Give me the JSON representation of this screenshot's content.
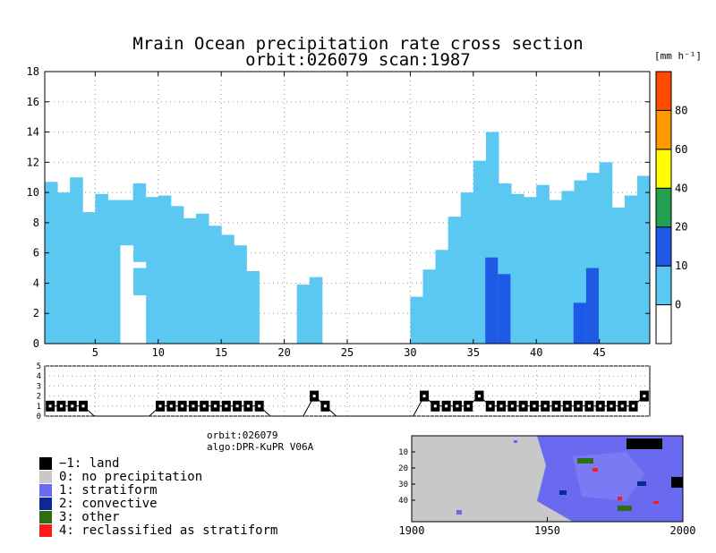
{
  "title_line1": "Mrain Ocean precipitation rate cross section",
  "title_line2": "orbit:026079     scan:1987",
  "main_chart": {
    "type": "bar",
    "description_units": "height in km; each column is the precipitating layer of one footprint",
    "x_range": [
      1,
      49
    ],
    "y_range": [
      0,
      18
    ],
    "x_ticks": [
      "5",
      "10",
      "15",
      "20",
      "25",
      "30",
      "35",
      "40",
      "45"
    ],
    "y_ticks": [
      "0",
      "2",
      "4",
      "6",
      "8",
      "10",
      "12",
      "14",
      "16",
      "18"
    ],
    "columns_top": [
      10.7,
      10.0,
      11.0,
      8.7,
      9.9,
      9.5,
      9.5,
      10.6,
      9.7,
      9.8,
      9.1,
      8.3,
      8.6,
      7.8,
      7.2,
      6.5,
      4.8,
      0,
      0,
      0,
      3.9,
      4.4,
      0,
      0,
      0,
      0,
      0,
      0,
      0,
      3.1,
      4.9,
      6.2,
      8.4,
      10.0,
      12.1,
      14.0,
      10.6,
      9.9,
      9.7,
      10.5,
      9.5,
      10.1,
      10.8,
      11.3,
      12.0,
      9.0,
      9.8,
      11.1
    ],
    "convective_columns": [
      {
        "footprint": 36,
        "top": 5.7
      },
      {
        "footprint": 37,
        "top": 4.6
      },
      {
        "footprint": 43,
        "top": 2.7
      },
      {
        "footprint": 44,
        "top": 5.0
      }
    ],
    "gaps": [
      {
        "footprint": 7,
        "from": 0,
        "to": 6.5
      },
      {
        "footprint": 8,
        "from": 0,
        "to": 3.2
      },
      {
        "footprint": 8,
        "from": 5.0,
        "to": 5.4
      }
    ]
  },
  "colorbar": {
    "unit": "[mm h⁻¹]",
    "labels": [
      "0",
      "10",
      "20",
      "40",
      "60",
      "80"
    ],
    "colors": [
      "#ffffff",
      "#5ac8f0",
      "#1e5ae6",
      "#21a050",
      "#ffff00",
      "#ff9900",
      "#ff4a00"
    ]
  },
  "type_chart": {
    "type": "line",
    "y_ticks": [
      "0",
      "1",
      "2",
      "3",
      "4",
      "5"
    ],
    "values": [
      1,
      1,
      1,
      1,
      0,
      0,
      0,
      0,
      0,
      0,
      1,
      1,
      1,
      1,
      1,
      1,
      1,
      1,
      1,
      1,
      0,
      0,
      0,
      0,
      2,
      1,
      0,
      0,
      0,
      0,
      0,
      0,
      0,
      0,
      2,
      1,
      1,
      1,
      1,
      2,
      1,
      1,
      1,
      1,
      1,
      1,
      1,
      1,
      1,
      1,
      1,
      1,
      1,
      1,
      2
    ]
  },
  "info": {
    "orbit": "orbit:026079",
    "algo": "algo:DPR-KuPR V06A"
  },
  "legend": [
    {
      "label": "−1: land",
      "color": "#000000"
    },
    {
      "label": "0: no precipitation",
      "color": "#c8c8c8"
    },
    {
      "label": "1: stratiform",
      "color": "#6a6af0"
    },
    {
      "label": "2: convective",
      "color": "#0a2896"
    },
    {
      "label": "3: other",
      "color": "#2d6e14"
    },
    {
      "label": "4: reclassified as stratiform",
      "color": "#ff1a1a"
    }
  ],
  "map": {
    "x_ticks": [
      "1900",
      "1950",
      "2000"
    ],
    "y_ticks": [
      "10",
      "20",
      "30",
      "40"
    ]
  }
}
